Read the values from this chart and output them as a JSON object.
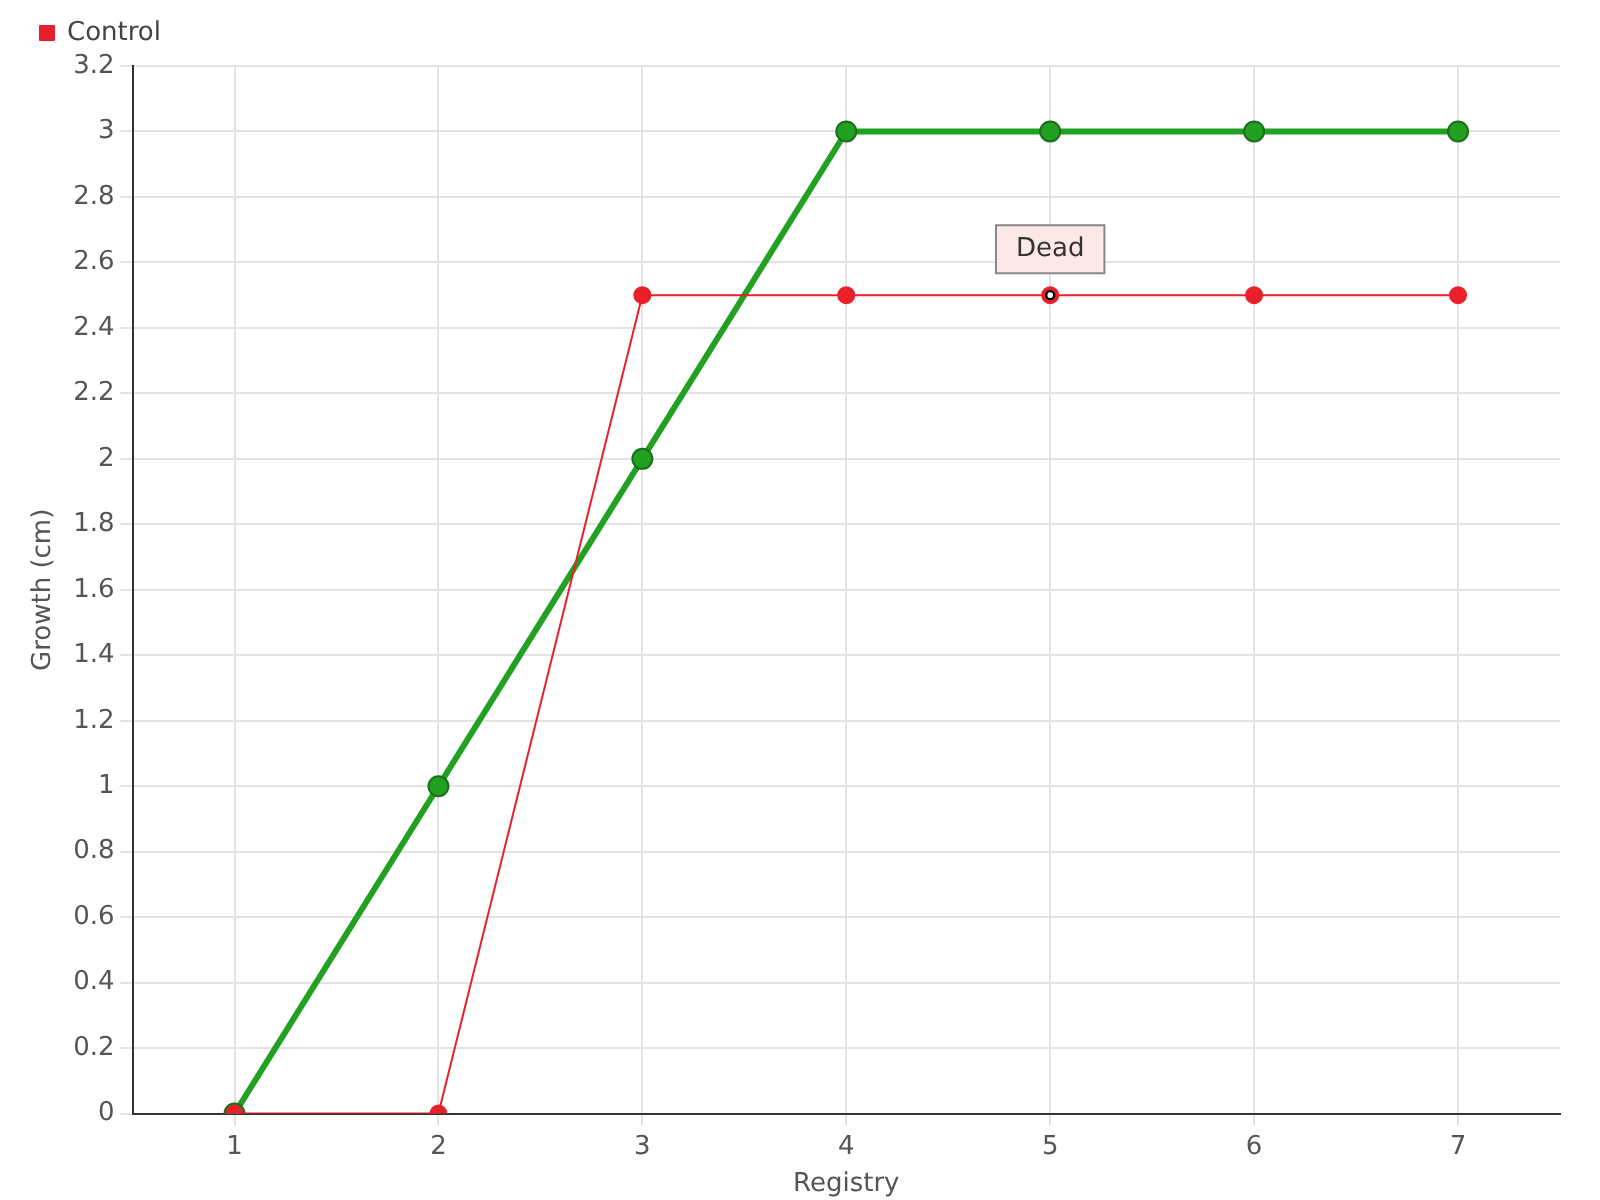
{
  "chart_data": {
    "type": "line",
    "xlabel": "Registry",
    "ylabel": "Growth (cm)",
    "categories": [
      "1",
      "2",
      "3",
      "4",
      "5",
      "6",
      "7"
    ],
    "series": [
      {
        "color": "#22a022",
        "values": [
          0,
          1,
          2,
          3,
          3,
          3,
          3
        ]
      },
      {
        "name": "Control",
        "color": "#e8202a",
        "values": [
          0,
          0,
          2.5,
          2.5,
          2.5,
          2.5,
          2.5
        ]
      }
    ],
    "ylim": [
      0,
      3.2
    ],
    "yticks": [
      0,
      0.2,
      0.4,
      0.6,
      0.8,
      1,
      1.2,
      1.4,
      1.6,
      1.8,
      2,
      2.2,
      2.4,
      2.6,
      2.8,
      3,
      3.2
    ],
    "grid": true,
    "legend": "top left",
    "marker": "circle",
    "line_style": "solid",
    "annotations": [
      {
        "text": "Dead",
        "x": "5",
        "y": 2.5
      }
    ]
  }
}
